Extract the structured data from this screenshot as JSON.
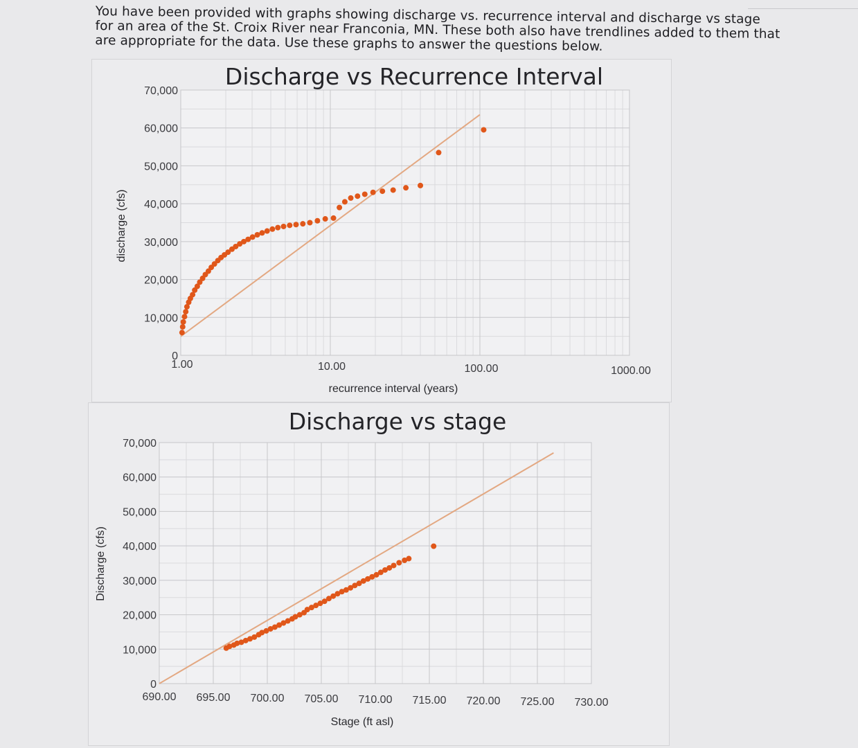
{
  "intro_text": "You have been provided with graphs showing discharge vs. recurrence interval and discharge vs stage for an area of the St. Croix River near Franconia, MN.  These both also have trendlines added to them that are appropriate for the data.  Use these graphs to answer the questions below.",
  "colors": {
    "points": "#e0571a",
    "trendline": "#e3a882",
    "grid": "#c6c6ca"
  },
  "chart_data": [
    {
      "type": "scatter",
      "title": "Discharge vs Recurrence Interval",
      "xlabel": "recurrence interval (years)",
      "ylabel": "discharge (cfs)",
      "x_scale": "log",
      "xlim": [
        1,
        1000
      ],
      "ylim": [
        0,
        70000
      ],
      "x_ticks": [
        "1.00",
        "10.00",
        "100.00",
        "1000.00"
      ],
      "y_ticks": [
        "0",
        "10,000",
        "20,000",
        "30,000",
        "40,000",
        "50,000",
        "60,000",
        "70,000"
      ],
      "grid": true,
      "trendline": {
        "type": "logarithmic",
        "from": [
          1,
          5000
        ],
        "to": [
          100,
          63500
        ]
      },
      "points": [
        [
          1.02,
          6000
        ],
        [
          1.03,
          7500
        ],
        [
          1.04,
          8800
        ],
        [
          1.06,
          10200
        ],
        [
          1.08,
          11500
        ],
        [
          1.1,
          12800
        ],
        [
          1.13,
          14000
        ],
        [
          1.16,
          15000
        ],
        [
          1.2,
          16000
        ],
        [
          1.24,
          17200
        ],
        [
          1.29,
          18200
        ],
        [
          1.34,
          19300
        ],
        [
          1.4,
          20300
        ],
        [
          1.46,
          21300
        ],
        [
          1.53,
          22200
        ],
        [
          1.6,
          23200
        ],
        [
          1.68,
          24100
        ],
        [
          1.77,
          25000
        ],
        [
          1.86,
          25800
        ],
        [
          1.96,
          26500
        ],
        [
          2.07,
          27200
        ],
        [
          2.2,
          28000
        ],
        [
          2.33,
          28700
        ],
        [
          2.48,
          29400
        ],
        [
          2.64,
          30000
        ],
        [
          2.82,
          30600
        ],
        [
          3.02,
          31200
        ],
        [
          3.25,
          31800
        ],
        [
          3.5,
          32300
        ],
        [
          3.78,
          32800
        ],
        [
          4.1,
          33300
        ],
        [
          4.46,
          33700
        ],
        [
          4.87,
          34000
        ],
        [
          5.35,
          34300
        ],
        [
          5.9,
          34500
        ],
        [
          6.55,
          34700
        ],
        [
          7.3,
          35000
        ],
        [
          8.2,
          35500
        ],
        [
          9.25,
          36000
        ],
        [
          10.5,
          36200
        ],
        [
          11.5,
          39000
        ],
        [
          12.5,
          40500
        ],
        [
          13.7,
          41500
        ],
        [
          15.2,
          42000
        ],
        [
          17.0,
          42500
        ],
        [
          19.3,
          43000
        ],
        [
          22.3,
          43300
        ],
        [
          26.3,
          43600
        ],
        [
          32,
          44200
        ],
        [
          40,
          44800
        ],
        [
          53,
          53500
        ],
        [
          106,
          59500
        ]
      ]
    },
    {
      "type": "scatter",
      "title": "Discharge vs stage",
      "xlabel": "Stage (ft asl)",
      "ylabel": "Discharge (cfs)",
      "xlim": [
        690,
        730
      ],
      "ylim": [
        0,
        70000
      ],
      "x_ticks": [
        "690.00",
        "695.00",
        "700.00",
        "705.00",
        "710.00",
        "715.00",
        "720.00",
        "725.00",
        "730.00"
      ],
      "y_ticks": [
        "0",
        "10,000",
        "20,000",
        "30,000",
        "40,000",
        "50,000",
        "60,000",
        "70,000"
      ],
      "grid": true,
      "trendline": {
        "type": "linear",
        "from": [
          690,
          0
        ],
        "to": [
          726.5,
          67000
        ]
      },
      "points": [
        [
          696.2,
          10300
        ],
        [
          696.5,
          10800
        ],
        [
          696.9,
          11200
        ],
        [
          697.2,
          11700
        ],
        [
          697.6,
          12000
        ],
        [
          698.0,
          12500
        ],
        [
          698.4,
          13000
        ],
        [
          698.8,
          13500
        ],
        [
          699.2,
          14200
        ],
        [
          699.5,
          14800
        ],
        [
          699.9,
          15300
        ],
        [
          700.3,
          15900
        ],
        [
          700.7,
          16400
        ],
        [
          701.1,
          17000
        ],
        [
          701.5,
          17600
        ],
        [
          701.9,
          18200
        ],
        [
          702.3,
          18800
        ],
        [
          702.6,
          19400
        ],
        [
          703.0,
          20000
        ],
        [
          703.4,
          20600
        ],
        [
          703.7,
          21500
        ],
        [
          704.1,
          22100
        ],
        [
          704.5,
          22700
        ],
        [
          704.9,
          23300
        ],
        [
          705.3,
          23900
        ],
        [
          705.7,
          24700
        ],
        [
          706.1,
          25400
        ],
        [
          706.5,
          26100
        ],
        [
          706.9,
          26700
        ],
        [
          707.3,
          27200
        ],
        [
          707.7,
          27800
        ],
        [
          708.1,
          28500
        ],
        [
          708.5,
          29100
        ],
        [
          708.9,
          29800
        ],
        [
          709.3,
          30400
        ],
        [
          709.7,
          31000
        ],
        [
          710.1,
          31600
        ],
        [
          710.5,
          32300
        ],
        [
          710.9,
          33000
        ],
        [
          711.3,
          33600
        ],
        [
          711.7,
          34300
        ],
        [
          712.2,
          35100
        ],
        [
          712.7,
          35800
        ],
        [
          713.1,
          36300
        ],
        [
          715.4,
          39900
        ]
      ]
    }
  ]
}
